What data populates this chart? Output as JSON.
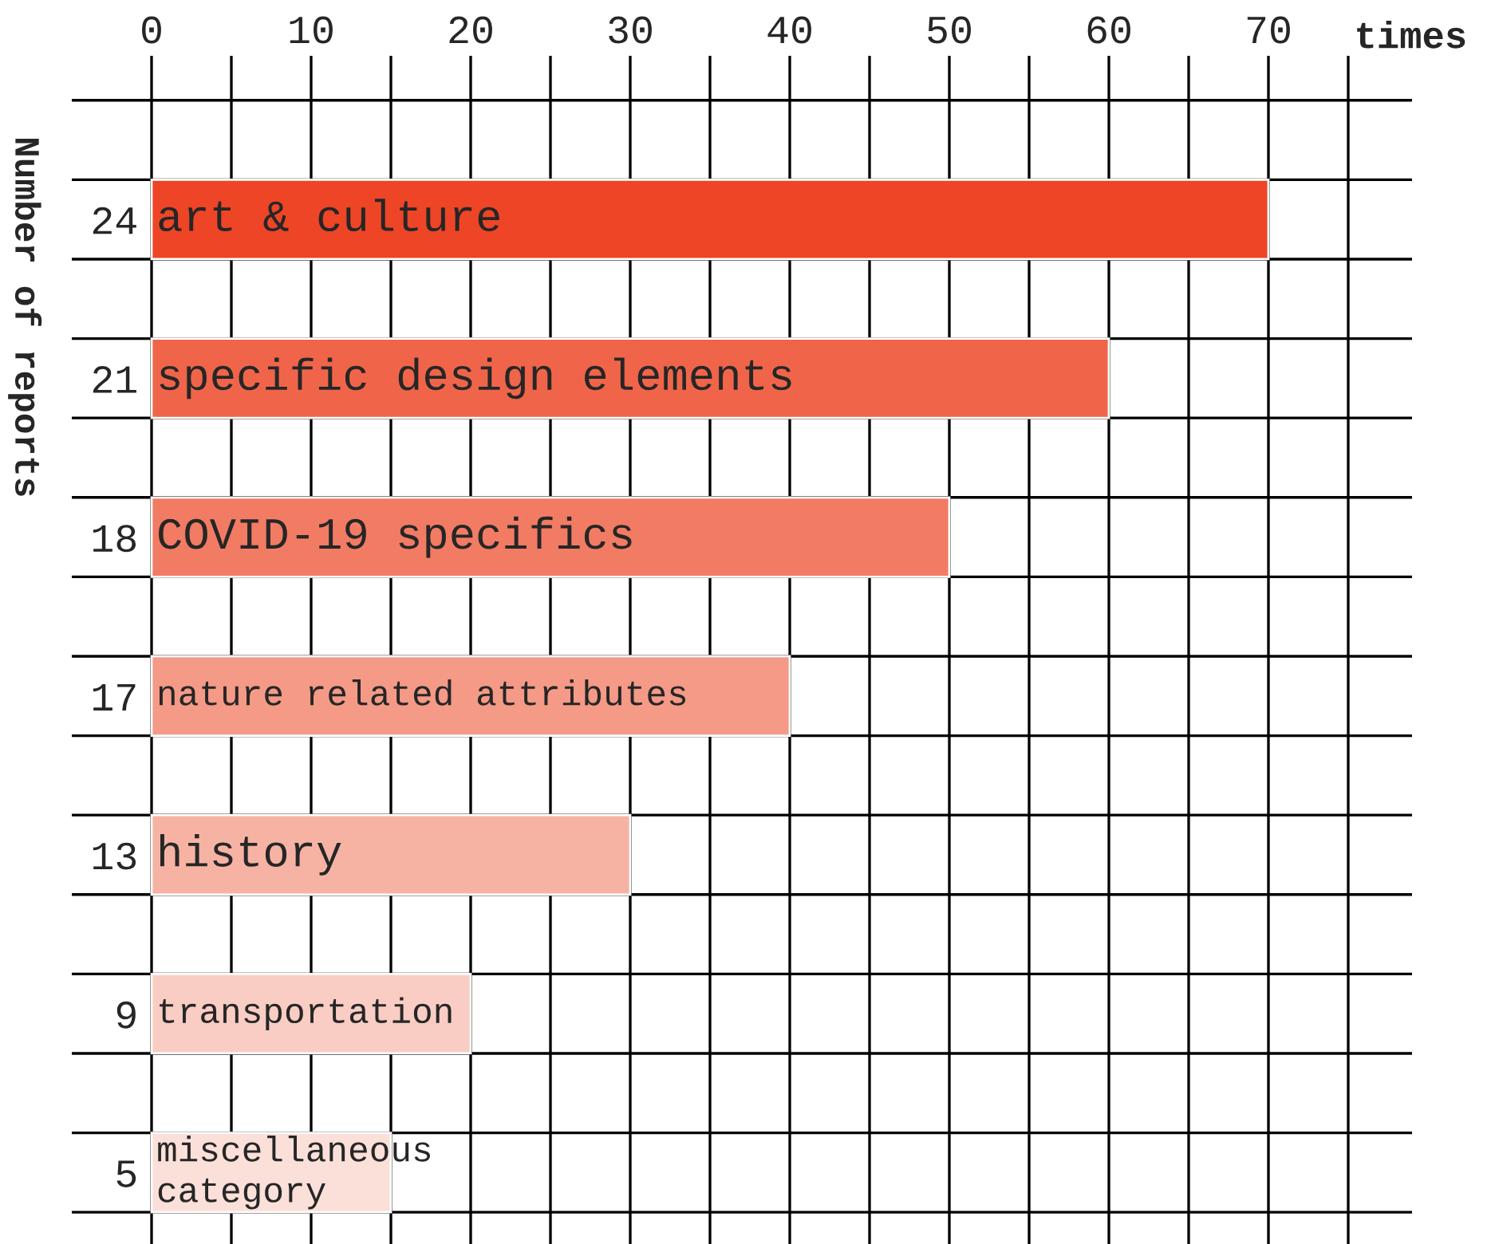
{
  "chart_data": {
    "type": "bar",
    "orientation": "horizontal",
    "xlabel": "times",
    "ylabel": "Number of reports",
    "categories": [
      "24",
      "21",
      "18",
      "17",
      "13",
      "9",
      "5"
    ],
    "values": [
      70,
      60,
      50,
      40,
      30,
      20,
      15
    ],
    "colors": [
      "#ee4527",
      "#f0654a",
      "#f27b64",
      "#f49a87",
      "#f6b3a3",
      "#f9cdc4",
      "#fbe0da"
    ],
    "xlim": [
      -5,
      79
    ],
    "xticks": [
      0,
      {
        "value": 5,
        "label": null
      },
      10,
      {
        "value": 15,
        "label": null
      },
      20,
      {
        "value": 25,
        "label": null
      },
      30,
      {
        "value": 35,
        "label": null
      },
      40,
      {
        "value": 45,
        "label": null
      },
      50,
      {
        "value": 55,
        "label": null
      },
      60,
      {
        "value": 65,
        "label": null
      },
      70,
      {
        "value": 75,
        "label": null
      }
    ],
    "grid": true,
    "annotations": [
      "art & culture",
      "specific design elements",
      "COVID-19 specifics",
      "nature related attributes",
      "history",
      "transportation",
      "miscellaneous\ncategory"
    ]
  }
}
